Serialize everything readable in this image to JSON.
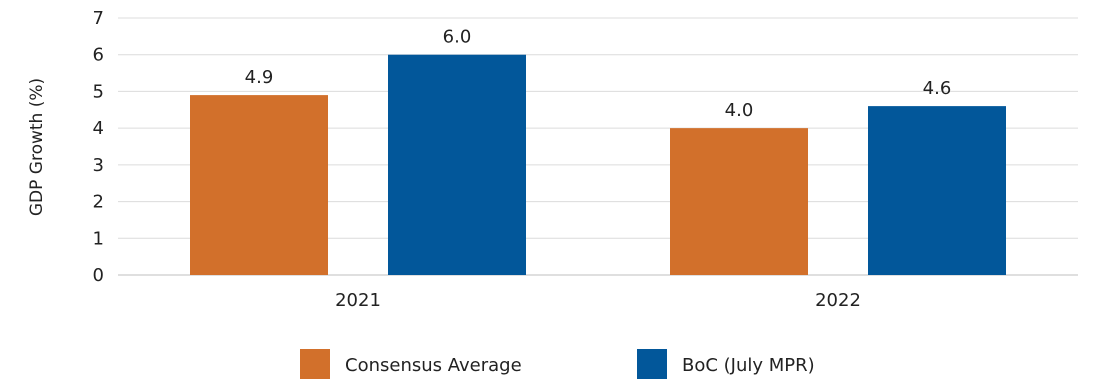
{
  "chart_data": {
    "type": "bar",
    "ylabel": "GDP Growth (%)",
    "ylim": [
      0,
      7
    ],
    "yticks": [
      0,
      1,
      2,
      3,
      4,
      5,
      6,
      7
    ],
    "categories": [
      "2021",
      "2022"
    ],
    "series": [
      {
        "name": "Consensus Average",
        "values": [
          4.9,
          4.0
        ],
        "labels": [
          "4.9",
          "4.0"
        ],
        "color": "#D2702B"
      },
      {
        "name": "BoC (July MPR)",
        "values": [
          6.0,
          4.6
        ],
        "labels": [
          "6.0",
          "4.6"
        ],
        "color": "#02579A"
      }
    ],
    "grid": true,
    "legend_position": "bottom"
  }
}
